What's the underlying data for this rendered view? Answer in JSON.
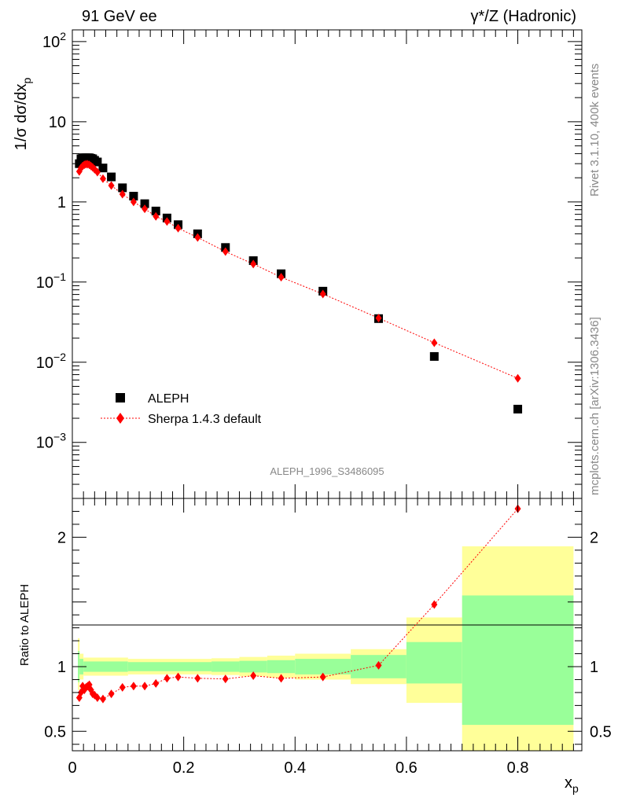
{
  "header": {
    "left_title": "91 GeV ee",
    "right_title": "γ*/Z (Hadronic)"
  },
  "side_text": {
    "top": "Rivet 3.1.10,  400k events",
    "bottom": "mcplots.cern.ch [arXiv:1306.3436]"
  },
  "analysis_id": "ALEPH_1996_S3486095",
  "colors": {
    "data_marker": "#000000",
    "mc_line": "#ff0000",
    "band_outer": "#ffff99",
    "band_inner": "#99ff99"
  },
  "chart_data": [
    {
      "type": "scatter",
      "scale": "log",
      "ylabel": "1/σ dσ/dx_p",
      "ylim": [
        0.0002,
        140
      ],
      "xlim": [
        0,
        0.915
      ],
      "y_ticks": [
        "10^-3",
        "10^-2",
        "10^-1",
        "1",
        "10",
        "10^2"
      ],
      "legend": {
        "placement": "bottom-left",
        "entries": [
          "ALEPH",
          "Sherpa 1.4.3 default"
        ]
      },
      "series": [
        {
          "name": "ALEPH",
          "marker": "square",
          "x": [
            0.0125,
            0.0155,
            0.0185,
            0.0215,
            0.0245,
            0.0275,
            0.0305,
            0.0335,
            0.0365,
            0.04,
            0.045,
            0.055,
            0.07,
            0.09,
            0.11,
            0.13,
            0.15,
            0.17,
            0.19,
            0.225,
            0.275,
            0.325,
            0.375,
            0.45,
            0.55,
            0.65,
            0.8
          ],
          "y": [
            3.0,
            3.45,
            3.55,
            3.55,
            3.55,
            3.55,
            3.55,
            3.5,
            3.45,
            3.3,
            3.15,
            2.65,
            2.05,
            1.5,
            1.18,
            0.95,
            0.77,
            0.63,
            0.52,
            0.4,
            0.27,
            0.185,
            0.127,
            0.077,
            0.035,
            0.0118,
            0.0026
          ]
        },
        {
          "name": "Sherpa 1.4.3 default",
          "marker": "diamond",
          "x": [
            0.0125,
            0.0155,
            0.0185,
            0.0215,
            0.0245,
            0.0275,
            0.0305,
            0.0335,
            0.0365,
            0.04,
            0.045,
            0.055,
            0.07,
            0.09,
            0.11,
            0.13,
            0.15,
            0.17,
            0.19,
            0.225,
            0.275,
            0.325,
            0.375,
            0.45,
            0.55,
            0.65,
            0.8
          ],
          "y": [
            2.4,
            2.65,
            2.8,
            2.9,
            2.95,
            2.95,
            2.9,
            2.8,
            2.7,
            2.55,
            2.35,
            1.95,
            1.6,
            1.25,
            1.0,
            0.82,
            0.66,
            0.57,
            0.47,
            0.36,
            0.24,
            0.168,
            0.115,
            0.071,
            0.0355,
            0.0175,
            0.0063
          ]
        }
      ]
    },
    {
      "type": "line",
      "ylabel": "Ratio to ALEPH",
      "xlabel": "x_p",
      "ylim": [
        0.35,
        2.3
      ],
      "xlim": [
        0,
        0.915
      ],
      "y_ticks": [
        "0.5",
        "1",
        "2"
      ],
      "x_ticks": [
        "0",
        "0.2",
        "0.4",
        "0.6",
        "0.8"
      ],
      "bands": [
        {
          "x0": 0.01,
          "x1": 0.013,
          "outer": [
            0.82,
            1.22
          ],
          "inner": [
            0.88,
            1.12
          ]
        },
        {
          "x0": 0.013,
          "x1": 0.02,
          "outer": [
            0.9,
            1.1
          ],
          "inner": [
            0.94,
            1.06
          ]
        },
        {
          "x0": 0.02,
          "x1": 0.1,
          "outer": [
            0.93,
            1.07
          ],
          "inner": [
            0.96,
            1.04
          ]
        },
        {
          "x0": 0.1,
          "x1": 0.25,
          "outer": [
            0.94,
            1.06
          ],
          "inner": [
            0.965,
            1.035
          ]
        },
        {
          "x0": 0.25,
          "x1": 0.3,
          "outer": [
            0.935,
            1.065
          ],
          "inner": [
            0.96,
            1.04
          ]
        },
        {
          "x0": 0.3,
          "x1": 0.35,
          "outer": [
            0.925,
            1.075
          ],
          "inner": [
            0.955,
            1.045
          ]
        },
        {
          "x0": 0.35,
          "x1": 0.4,
          "outer": [
            0.915,
            1.085
          ],
          "inner": [
            0.95,
            1.05
          ]
        },
        {
          "x0": 0.4,
          "x1": 0.5,
          "outer": [
            0.9,
            1.1
          ],
          "inner": [
            0.94,
            1.06
          ]
        },
        {
          "x0": 0.5,
          "x1": 0.6,
          "outer": [
            0.865,
            1.135
          ],
          "inner": [
            0.91,
            1.09
          ]
        },
        {
          "x0": 0.6,
          "x1": 0.7,
          "outer": [
            0.72,
            1.38
          ],
          "inner": [
            0.87,
            1.19
          ]
        },
        {
          "x0": 0.7,
          "x1": 0.9,
          "outer": [
            0.3,
            1.93
          ],
          "inner": [
            0.55,
            1.55
          ]
        }
      ],
      "series": [
        {
          "name": "Sherpa 1.4.3 default",
          "x": [
            0.0125,
            0.0155,
            0.0185,
            0.0215,
            0.0245,
            0.0275,
            0.0305,
            0.0335,
            0.0365,
            0.04,
            0.045,
            0.055,
            0.07,
            0.09,
            0.11,
            0.13,
            0.15,
            0.17,
            0.19,
            0.225,
            0.275,
            0.325,
            0.375,
            0.45,
            0.55,
            0.65,
            0.8
          ],
          "y": [
            0.76,
            0.8,
            0.85,
            0.82,
            0.84,
            0.85,
            0.86,
            0.82,
            0.79,
            0.78,
            0.76,
            0.75,
            0.79,
            0.84,
            0.85,
            0.85,
            0.87,
            0.91,
            0.92,
            0.91,
            0.905,
            0.93,
            0.91,
            0.92,
            1.01,
            1.48,
            2.22
          ]
        }
      ]
    }
  ]
}
